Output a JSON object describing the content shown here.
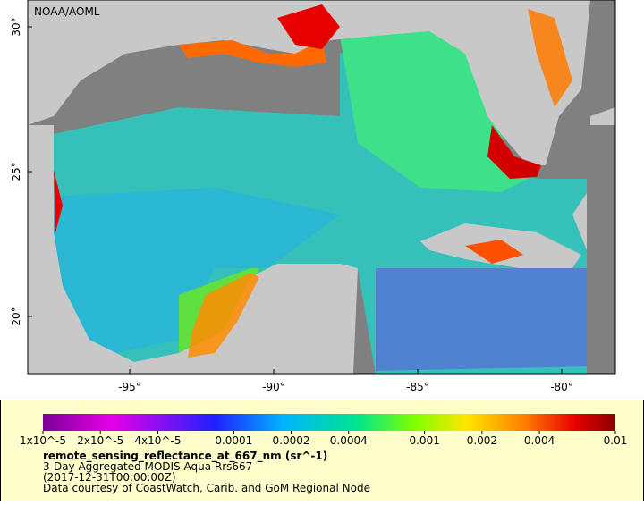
{
  "map": {
    "watermark": "NOAA/AOML",
    "lat_ticks": [
      {
        "value": 30,
        "label": "30°"
      },
      {
        "value": 25,
        "label": "25°"
      },
      {
        "value": 20,
        "label": "20°"
      }
    ],
    "lon_ticks": [
      {
        "value": -95,
        "label": "-95°"
      },
      {
        "value": -90,
        "label": "-90°"
      },
      {
        "value": -85,
        "label": "-85°"
      },
      {
        "value": -80,
        "label": "-80°"
      }
    ]
  },
  "legend": {
    "ticks": [
      {
        "value": 1e-05,
        "label": "1x10^-5"
      },
      {
        "value": 2e-05,
        "label": "2x10^-5"
      },
      {
        "value": 4e-05,
        "label": "4x10^-5"
      },
      {
        "value": 0.0001,
        "label": "0.0001"
      },
      {
        "value": 0.0002,
        "label": "0.0002"
      },
      {
        "value": 0.0004,
        "label": "0.0004"
      },
      {
        "value": 0.001,
        "label": "0.001"
      },
      {
        "value": 0.002,
        "label": "0.002"
      },
      {
        "value": 0.004,
        "label": "0.004"
      },
      {
        "value": 0.01,
        "label": "0.01"
      }
    ],
    "title": "remote_sensing_reflectance_at_667_nm (sr^-1)",
    "lines": [
      "3-Day Aggregated MODIS Aqua Rrs667",
      "(2017-12-31T00:00:00Z)",
      "Data courtesy of CoastWatch, Carib. and GoM Regional Node"
    ]
  }
}
